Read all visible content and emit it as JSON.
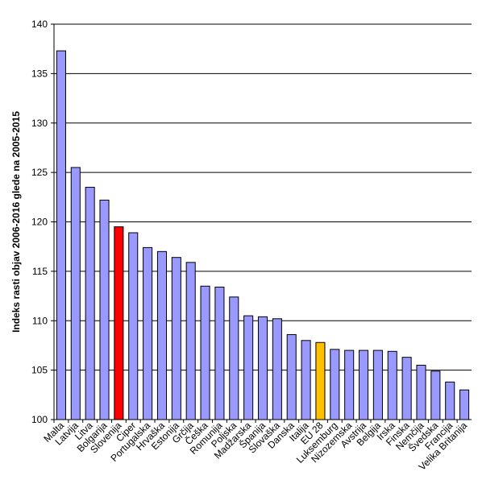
{
  "chart_data": {
    "type": "bar",
    "ylabel": "Indeks rasti objav 2006-2016 glede na 2005-2015",
    "ylim": [
      100,
      140
    ],
    "yticks": [
      100,
      105,
      110,
      115,
      120,
      125,
      130,
      135,
      140
    ],
    "grid": true,
    "categories": [
      "Malta",
      "Latvija",
      "Litva",
      "Bolgarija",
      "Slovenija",
      "Ciper",
      "Portugalska",
      "Hrvaška",
      "Estonija",
      "Grčija",
      "Češka",
      "Romunija",
      "Poljska",
      "Madžarska",
      "Španija",
      "Slovaška",
      "Danska",
      "Italija",
      "EU 28",
      "Luksemburg",
      "Nizozemska",
      "Avstrija",
      "Belgija",
      "Irska",
      "Finska",
      "Nemčija",
      "Švedska",
      "Francija",
      "Velika Britanija"
    ],
    "values": [
      137.3,
      125.5,
      123.5,
      122.2,
      119.5,
      118.9,
      117.4,
      117.0,
      116.4,
      115.9,
      113.5,
      113.4,
      112.4,
      110.5,
      110.4,
      110.2,
      108.6,
      108.0,
      107.8,
      107.1,
      107.0,
      107.0,
      107.0,
      106.9,
      106.3,
      105.5,
      104.9,
      103.8,
      103.0
    ],
    "colors": {
      "default": "#9999ff",
      "highlight_slovenija": "#ff0000",
      "highlight_eu28": "#ffc000"
    }
  }
}
